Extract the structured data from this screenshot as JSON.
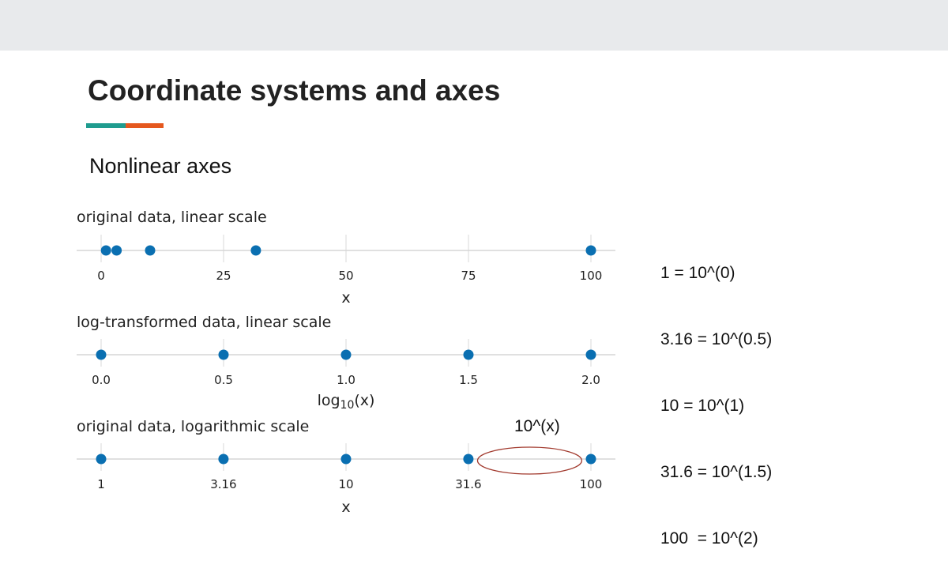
{
  "slide": {
    "title": "Coordinate systems and axes",
    "subtitle": "Nonlinear axes",
    "accent_colors": [
      "#1f9c8f",
      "#e5581e"
    ],
    "background_band_color": "#e8eaec"
  },
  "notes": [
    "1 = 10^(0)",
    "3.16 = 10^(0.5)",
    "10 = 10^(1)",
    "31.6 = 10^(1.5)",
    "100  = 10^(2)"
  ],
  "annotation": {
    "label": "10^(x)",
    "ellipse_color": "#a23a2e"
  },
  "chart_data": [
    {
      "type": "scatter",
      "title": "original data, linear scale",
      "xlabel": "x",
      "scale": "linear",
      "xlim": [
        0,
        100
      ],
      "ticks": [
        0,
        25,
        50,
        75,
        100
      ],
      "tick_labels": [
        "0",
        "25",
        "50",
        "75",
        "100"
      ],
      "x": [
        1,
        3.16,
        10,
        31.6,
        100
      ],
      "point_color": "#0a6fb1",
      "grid": true
    },
    {
      "type": "scatter",
      "title": "log-transformed data, linear scale",
      "xlabel": "log",
      "xlabel_sub": "10",
      "xlabel_suffix": "(x)",
      "scale": "linear",
      "xlim": [
        0,
        2
      ],
      "ticks": [
        0,
        0.5,
        1,
        1.5,
        2
      ],
      "tick_labels": [
        "0.0",
        "0.5",
        "1.0",
        "1.5",
        "2.0"
      ],
      "x": [
        0,
        0.5,
        1,
        1.5,
        2
      ],
      "point_color": "#0a6fb1",
      "grid": true
    },
    {
      "type": "scatter",
      "title": "original data, logarithmic scale",
      "xlabel": "x",
      "scale": "log",
      "xlim": [
        1,
        100
      ],
      "ticks": [
        1,
        3.16,
        10,
        31.6,
        100
      ],
      "tick_labels": [
        "1",
        "3.16",
        "10",
        "31.6",
        "100"
      ],
      "x": [
        1,
        3.16,
        10,
        31.6,
        100
      ],
      "point_color": "#0a6fb1",
      "grid": true
    }
  ]
}
